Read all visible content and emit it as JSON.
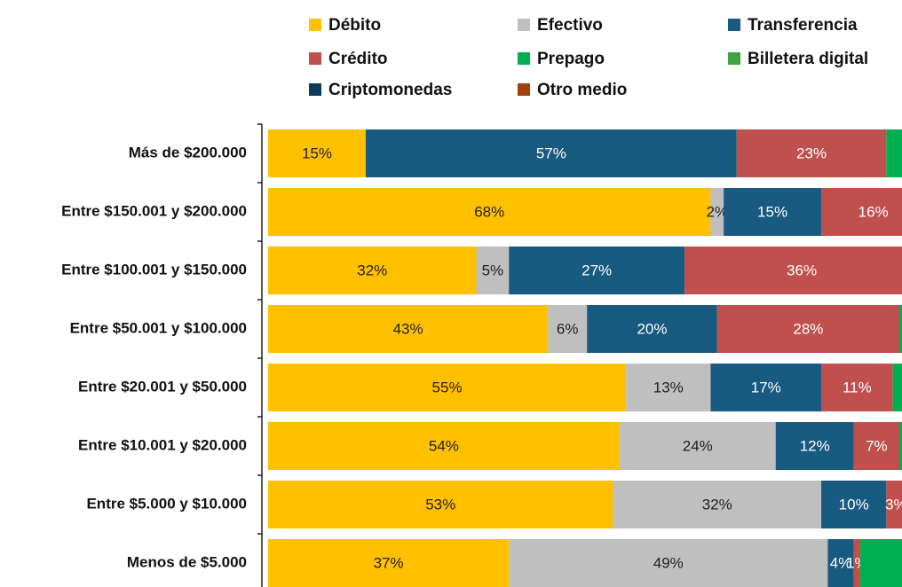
{
  "chart_data": {
    "type": "bar",
    "orientation": "horizontal",
    "stacked": true,
    "categories": [
      "Más de $200.000",
      "Entre $150.001 y $200.000",
      "Entre $100.001 y $150.000",
      "Entre $50.001 y $100.000",
      "Entre $20.001 y $50.000",
      "Entre $10.001 y $20.000",
      "Entre $5.000 y $10.000",
      "Menos de $5.000"
    ],
    "xlim": [
      0,
      100
    ],
    "series": [
      {
        "name": "Débito",
        "color": "#FFC000",
        "label_color": "#222222",
        "values": [
          15,
          68,
          32,
          43,
          55,
          54,
          53,
          37
        ],
        "value_labels": [
          "15%",
          "68%",
          "32%",
          "43%",
          "55%",
          "54%",
          "53%",
          "37%"
        ]
      },
      {
        "name": "Efectivo",
        "color": "#BFBFBF",
        "label_color": "#222222",
        "values": [
          0,
          2,
          5,
          6,
          13,
          24,
          32,
          49
        ],
        "value_labels": [
          null,
          "2%",
          "5%",
          "6%",
          "13%",
          "24%",
          "32%",
          "49%"
        ]
      },
      {
        "name": "Transferencia",
        "color": "#195A80",
        "label_color": "#FFFFFF",
        "values": [
          57,
          15,
          27,
          20,
          17,
          12,
          10,
          4
        ],
        "value_labels": [
          "57%",
          "15%",
          "27%",
          "20%",
          "17%",
          "12%",
          "10%",
          "4%"
        ]
      },
      {
        "name": "Crédito",
        "color": "#C0504D",
        "label_color": "#FFFFFF",
        "values": [
          23,
          16,
          36,
          28,
          11,
          7,
          3,
          1
        ],
        "value_labels": [
          "23%",
          "16%",
          "36%",
          "28%",
          "11%",
          "7%",
          "3%",
          "1%"
        ]
      },
      {
        "name": "Prepago",
        "color": "#00B050",
        "label_color": "#FFFFFF",
        "values": [
          3,
          0,
          0,
          2,
          2,
          2,
          1,
          7
        ],
        "value_labels": [
          null,
          null,
          null,
          null,
          null,
          null,
          null,
          null
        ]
      },
      {
        "name": "Billetera digital",
        "color": "#3FA33F",
        "label_color": "#FFFFFF",
        "values": [
          2,
          0,
          0,
          1,
          2,
          1,
          1,
          1
        ],
        "value_labels": [
          null,
          null,
          null,
          null,
          null,
          null,
          null,
          null
        ]
      },
      {
        "name": "Criptomonedas",
        "color": "#0E3B5B",
        "label_color": "#FFFFFF",
        "values": [
          0,
          0,
          0,
          0,
          0,
          0,
          0,
          0
        ],
        "value_labels": [
          null,
          null,
          null,
          null,
          null,
          null,
          null,
          null
        ]
      },
      {
        "name": "Otro medio",
        "color": "#A0430A",
        "label_color": "#FFFFFF",
        "values": [
          0,
          0,
          0,
          0,
          0,
          0,
          0,
          0
        ],
        "value_labels": [
          null,
          null,
          null,
          null,
          null,
          null,
          null,
          null
        ]
      }
    ]
  }
}
